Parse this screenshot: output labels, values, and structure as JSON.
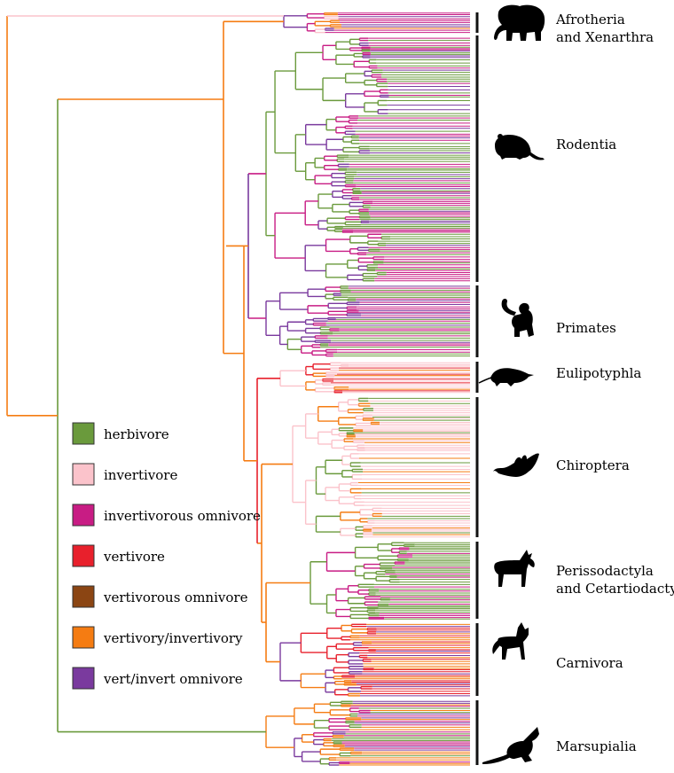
{
  "figure": {
    "description_visible": false
  },
  "legend": {
    "items": [
      {
        "key": "herbivore",
        "label": "herbivore",
        "color": "#6a9a3c"
      },
      {
        "key": "invertivore",
        "label": "invertivore",
        "color": "#fbc3cb"
      },
      {
        "key": "invertivorous_omnivore",
        "label": "invertivorous omnivore",
        "color": "#c81c84"
      },
      {
        "key": "vertivore",
        "label": "vertivore",
        "color": "#e8202c"
      },
      {
        "key": "vertivorous_omnivore",
        "label": "vertivorous omnivore",
        "color": "#8b4513"
      },
      {
        "key": "vertivory_invertivory",
        "label": "vertivory/invertivory",
        "color": "#f57c12"
      },
      {
        "key": "vert_invert_omnivore",
        "label": "vert/invert omnivore",
        "color": "#7a3a9e"
      }
    ]
  },
  "clades": [
    {
      "key": "afrotheria",
      "lines": [
        "Afrotheria",
        "and Xenarthra"
      ],
      "icon": "elephant-icon"
    },
    {
      "key": "rodentia",
      "lines": [
        "Rodentia"
      ],
      "icon": "rodent-icon"
    },
    {
      "key": "primates",
      "lines": [
        "Primates"
      ],
      "icon": "primate-icon"
    },
    {
      "key": "eulipotyphla",
      "lines": [
        "Eulipotyphla"
      ],
      "icon": "shrew-icon"
    },
    {
      "key": "chiroptera",
      "lines": [
        "Chiroptera"
      ],
      "icon": "bat-icon"
    },
    {
      "key": "ungulates",
      "lines": [
        "Perissodactyla",
        "and Cetartiodactyla"
      ],
      "icon": "ungulate-icon"
    },
    {
      "key": "carnivora",
      "lines": [
        "Carnivora"
      ],
      "icon": "fox-icon"
    },
    {
      "key": "marsupialia",
      "lines": [
        "Marsupialia"
      ],
      "icon": "kangaroo-icon"
    }
  ]
}
